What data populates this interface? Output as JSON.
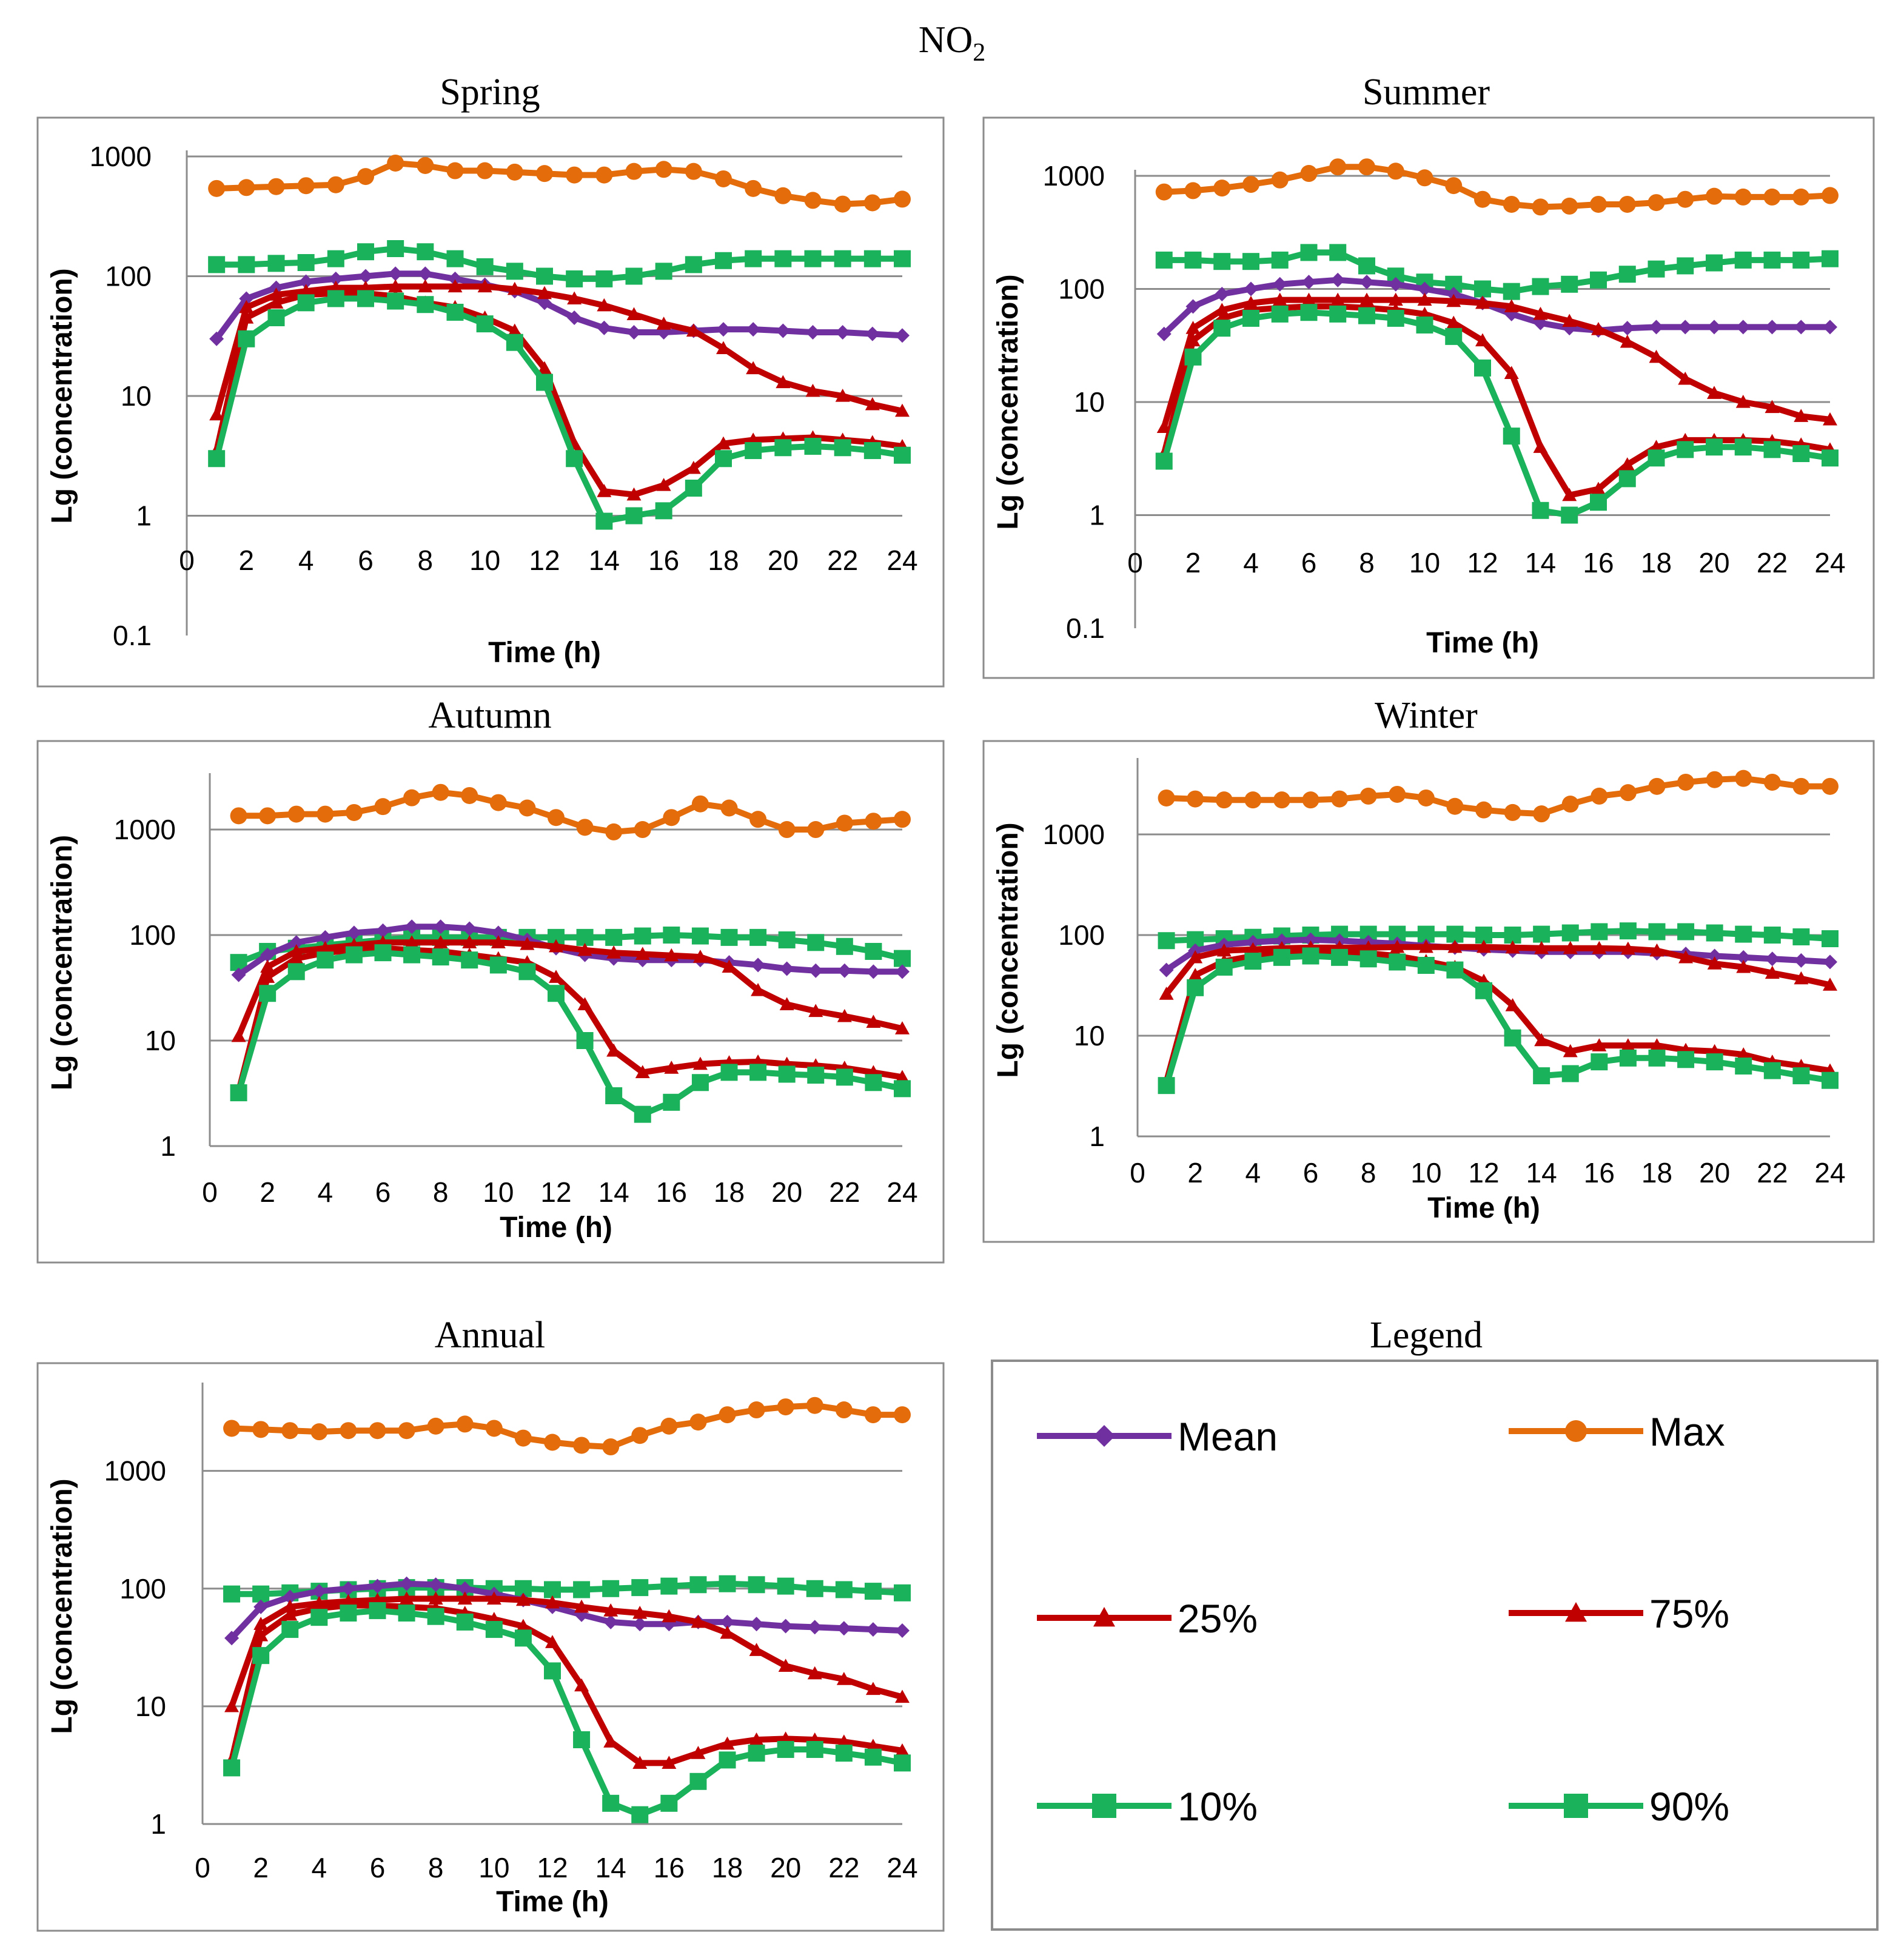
{
  "figure": {
    "title_main": "NO",
    "title_sub": "2",
    "panel_titles": [
      "Spring",
      "Summer",
      "Autumn",
      "Winter",
      "Annual"
    ],
    "legend_title": "Legend"
  },
  "legend": {
    "items": [
      {
        "label": "Mean",
        "color": "#7030a0",
        "marker": "diamond"
      },
      {
        "label": "Max",
        "color": "#e46c0a",
        "marker": "circle"
      },
      {
        "label": "25%",
        "color": "#c00000",
        "marker": "triangle"
      },
      {
        "label": "75%",
        "color": "#c00000",
        "marker": "triangle"
      },
      {
        "label": "10%",
        "color": "#1ab25a",
        "marker": "square"
      },
      {
        "label": "90%",
        "color": "#1ab25a",
        "marker": "square"
      }
    ]
  },
  "chart_data": [
    {
      "type": "line",
      "title": "Spring",
      "xlabel": "Time (h)",
      "ylabel": "Lg (concentration)",
      "yscale": "log",
      "ylim": [
        0.1,
        1000
      ],
      "yticks": [
        "0.1",
        "1",
        "10",
        "100",
        "1000"
      ],
      "xlim": [
        0,
        24
      ],
      "xticks": [
        "0",
        "2",
        "4",
        "6",
        "8",
        "10",
        "12",
        "14",
        "16",
        "18",
        "20",
        "22",
        "24"
      ],
      "x": [
        1,
        2,
        3,
        4,
        5,
        6,
        7,
        8,
        9,
        10,
        11,
        12,
        13,
        14,
        15,
        16,
        17,
        18,
        19,
        20,
        21,
        22,
        23,
        24
      ],
      "series": [
        {
          "name": "Max",
          "values": [
            540,
            550,
            560,
            570,
            580,
            680,
            880,
            840,
            760,
            760,
            740,
            720,
            700,
            700,
            750,
            780,
            750,
            650,
            540,
            470,
            430,
            400,
            410,
            440
          ]
        },
        {
          "name": "90%",
          "values": [
            125,
            125,
            128,
            130,
            140,
            160,
            170,
            160,
            140,
            120,
            110,
            100,
            95,
            95,
            100,
            110,
            125,
            135,
            140,
            140,
            140,
            140,
            140,
            140
          ]
        },
        {
          "name": "Mean",
          "values": [
            30,
            65,
            80,
            90,
            95,
            100,
            105,
            105,
            95,
            85,
            75,
            60,
            45,
            37,
            34,
            34,
            35,
            36,
            36,
            35,
            34,
            34,
            33,
            32
          ]
        },
        {
          "name": "75%",
          "values": [
            7,
            55,
            70,
            75,
            80,
            80,
            82,
            82,
            82,
            82,
            78,
            72,
            65,
            57,
            48,
            40,
            35,
            25,
            17,
            13,
            11,
            10,
            8.5,
            7.5
          ]
        },
        {
          "name": "25%",
          "values": [
            3.5,
            45,
            60,
            70,
            72,
            72,
            68,
            60,
            55,
            45,
            35,
            17,
            4,
            1.6,
            1.5,
            1.8,
            2.5,
            4,
            4.3,
            4.4,
            4.5,
            4.3,
            4.1,
            3.8
          ]
        },
        {
          "name": "10%",
          "values": [
            3,
            30,
            45,
            60,
            65,
            65,
            62,
            58,
            50,
            40,
            28,
            13,
            3,
            0.9,
            1,
            1.1,
            1.7,
            3,
            3.5,
            3.7,
            3.8,
            3.7,
            3.5,
            3.2
          ]
        }
      ]
    },
    {
      "type": "line",
      "title": "Summer",
      "xlabel": "Time (h)",
      "ylabel": "Lg (concentration)",
      "yscale": "log",
      "ylim": [
        0.1,
        1000
      ],
      "yticks": [
        "0.1",
        "1",
        "10",
        "100",
        "1000"
      ],
      "xlim": [
        0,
        24
      ],
      "xticks": [
        "0",
        "2",
        "4",
        "6",
        "8",
        "10",
        "12",
        "14",
        "16",
        "18",
        "20",
        "22",
        "24"
      ],
      "x": [
        1,
        2,
        3,
        4,
        5,
        6,
        7,
        8,
        9,
        10,
        11,
        12,
        13,
        14,
        15,
        16,
        17,
        18,
        19,
        20,
        21,
        22,
        23,
        24
      ],
      "series": [
        {
          "name": "Max",
          "values": [
            720,
            740,
            780,
            840,
            920,
            1050,
            1200,
            1200,
            1100,
            960,
            820,
            620,
            560,
            530,
            540,
            560,
            560,
            580,
            620,
            660,
            650,
            650,
            650,
            670
          ]
        },
        {
          "name": "90%",
          "values": [
            180,
            180,
            175,
            175,
            180,
            210,
            210,
            160,
            130,
            115,
            110,
            100,
            95,
            105,
            110,
            120,
            135,
            150,
            160,
            170,
            180,
            180,
            180,
            185
          ]
        },
        {
          "name": "Mean",
          "values": [
            40,
            70,
            90,
            100,
            110,
            115,
            120,
            115,
            110,
            100,
            90,
            75,
            60,
            50,
            45,
            43,
            45,
            46,
            46,
            46,
            46,
            46,
            46,
            46
          ]
        },
        {
          "name": "75%",
          "values": [
            6,
            45,
            65,
            75,
            80,
            80,
            80,
            80,
            80,
            80,
            78,
            75,
            70,
            60,
            52,
            44,
            34,
            25,
            16,
            12,
            10,
            9,
            7.5,
            7
          ]
        },
        {
          "name": "25%",
          "values": [
            3.5,
            35,
            55,
            65,
            68,
            70,
            70,
            68,
            65,
            60,
            50,
            35,
            18,
            4,
            1.5,
            1.7,
            2.8,
            4,
            4.6,
            4.6,
            4.6,
            4.5,
            4.2,
            3.8
          ]
        },
        {
          "name": "10%",
          "values": [
            3,
            25,
            45,
            55,
            60,
            62,
            60,
            58,
            55,
            48,
            38,
            20,
            5,
            1.1,
            1,
            1.3,
            2.1,
            3.2,
            3.8,
            4,
            4,
            3.8,
            3.5,
            3.2
          ]
        }
      ]
    },
    {
      "type": "line",
      "title": "Autumn",
      "xlabel": "Time (h)",
      "ylabel": "Lg (concentration)",
      "yscale": "log",
      "ylim": [
        1,
        3000
      ],
      "yticks": [
        "1",
        "10",
        "100",
        "1000"
      ],
      "xlim": [
        0,
        24
      ],
      "xticks": [
        "0",
        "2",
        "4",
        "6",
        "8",
        "10",
        "12",
        "14",
        "16",
        "18",
        "20",
        "22",
        "24"
      ],
      "x": [
        1,
        2,
        3,
        4,
        5,
        6,
        7,
        8,
        9,
        10,
        11,
        12,
        13,
        14,
        15,
        16,
        17,
        18,
        19,
        20,
        21,
        22,
        23,
        24
      ],
      "series": [
        {
          "name": "Max",
          "values": [
            1350,
            1350,
            1400,
            1400,
            1450,
            1650,
            2000,
            2250,
            2100,
            1800,
            1600,
            1300,
            1050,
            950,
            1000,
            1300,
            1750,
            1600,
            1250,
            1000,
            1000,
            1150,
            1200,
            1250
          ]
        },
        {
          "name": "90%",
          "values": [
            55,
            70,
            75,
            80,
            85,
            90,
            95,
            95,
            95,
            95,
            95,
            95,
            95,
            95,
            98,
            100,
            98,
            95,
            95,
            90,
            85,
            78,
            70,
            60
          ]
        },
        {
          "name": "Mean",
          "values": [
            42,
            65,
            85,
            95,
            105,
            110,
            120,
            120,
            115,
            105,
            90,
            75,
            65,
            60,
            58,
            58,
            58,
            55,
            52,
            48,
            46,
            46,
            45,
            45
          ]
        },
        {
          "name": "75%",
          "values": [
            11,
            50,
            70,
            75,
            80,
            85,
            85,
            85,
            85,
            85,
            82,
            78,
            72,
            68,
            66,
            64,
            62,
            50,
            30,
            22,
            19,
            17,
            15,
            13
          ]
        },
        {
          "name": "25%",
          "values": [
            3.3,
            40,
            60,
            68,
            72,
            75,
            72,
            70,
            65,
            60,
            55,
            40,
            22,
            8,
            5,
            5.5,
            6,
            6.2,
            6.3,
            6,
            5.8,
            5.5,
            5,
            4.5
          ]
        },
        {
          "name": "10%",
          "values": [
            3.2,
            28,
            45,
            58,
            65,
            68,
            65,
            62,
            58,
            52,
            45,
            28,
            10,
            3,
            2,
            2.6,
            4,
            5,
            5,
            4.8,
            4.7,
            4.5,
            4,
            3.5
          ]
        }
      ]
    },
    {
      "type": "line",
      "title": "Winter",
      "xlabel": "Time (h)",
      "ylabel": "Lg (concentration)",
      "yscale": "log",
      "ylim": [
        1,
        5000
      ],
      "yticks": [
        "1",
        "10",
        "100",
        "1000"
      ],
      "xlim": [
        0,
        24
      ],
      "xticks": [
        "0",
        "2",
        "4",
        "6",
        "8",
        "10",
        "12",
        "14",
        "16",
        "18",
        "20",
        "22",
        "24"
      ],
      "x": [
        1,
        2,
        3,
        4,
        5,
        6,
        7,
        8,
        9,
        10,
        11,
        12,
        13,
        14,
        15,
        16,
        17,
        18,
        19,
        20,
        21,
        22,
        23,
        24
      ],
      "series": [
        {
          "name": "Max",
          "values": [
            2300,
            2250,
            2200,
            2200,
            2200,
            2200,
            2250,
            2400,
            2500,
            2300,
            1900,
            1750,
            1650,
            1600,
            2000,
            2400,
            2600,
            3000,
            3300,
            3500,
            3600,
            3300,
            3000,
            3000
          ]
        },
        {
          "name": "90%",
          "values": [
            88,
            90,
            92,
            95,
            98,
            100,
            102,
            102,
            102,
            102,
            102,
            100,
            100,
            102,
            105,
            108,
            110,
            108,
            108,
            105,
            102,
            100,
            96,
            92
          ]
        },
        {
          "name": "Mean",
          "values": [
            45,
            70,
            80,
            85,
            88,
            90,
            88,
            85,
            82,
            78,
            75,
            72,
            70,
            68,
            68,
            68,
            68,
            66,
            65,
            62,
            60,
            58,
            56,
            54
          ]
        },
        {
          "name": "75%",
          "values": [
            26,
            60,
            70,
            72,
            74,
            75,
            75,
            75,
            76,
            76,
            76,
            76,
            75,
            74,
            74,
            74,
            73,
            70,
            60,
            52,
            48,
            42,
            37,
            32
          ]
        },
        {
          "name": "25%",
          "values": [
            3.5,
            40,
            55,
            62,
            66,
            68,
            68,
            66,
            62,
            55,
            48,
            35,
            20,
            9,
            7,
            8,
            8,
            8,
            7.2,
            7,
            6.5,
            5.5,
            5,
            4.5
          ]
        },
        {
          "name": "10%",
          "values": [
            3.2,
            30,
            48,
            55,
            60,
            62,
            60,
            58,
            54,
            50,
            45,
            28,
            9.5,
            4,
            4.2,
            5.5,
            6,
            6,
            5.8,
            5.5,
            5,
            4.5,
            4,
            3.6
          ]
        }
      ]
    },
    {
      "type": "line",
      "title": "Annual",
      "xlabel": "Time (h)",
      "ylabel": "Lg (concentration)",
      "yscale": "log",
      "ylim": [
        1,
        5000
      ],
      "yticks": [
        "1",
        "10",
        "100",
        "1000"
      ],
      "xlim": [
        0,
        24
      ],
      "xticks": [
        "0",
        "2",
        "4",
        "6",
        "8",
        "10",
        "12",
        "14",
        "16",
        "18",
        "20",
        "22",
        "24"
      ],
      "x": [
        1,
        2,
        3,
        4,
        5,
        6,
        7,
        8,
        9,
        10,
        11,
        12,
        13,
        14,
        15,
        16,
        17,
        18,
        19,
        20,
        21,
        22,
        23,
        24
      ],
      "series": [
        {
          "name": "Max",
          "values": [
            2300,
            2250,
            2200,
            2150,
            2200,
            2200,
            2200,
            2400,
            2500,
            2300,
            1900,
            1750,
            1650,
            1600,
            2000,
            2400,
            2600,
            3000,
            3300,
            3500,
            3600,
            3300,
            3000,
            3000
          ]
        },
        {
          "name": "90%",
          "values": [
            90,
            90,
            92,
            95,
            98,
            100,
            102,
            102,
            102,
            100,
            100,
            98,
            98,
            100,
            102,
            105,
            108,
            110,
            108,
            105,
            100,
            98,
            95,
            92
          ]
        },
        {
          "name": "Mean",
          "values": [
            38,
            70,
            85,
            95,
            100,
            105,
            110,
            108,
            100,
            90,
            80,
            70,
            60,
            52,
            50,
            50,
            52,
            52,
            50,
            48,
            47,
            46,
            45,
            44
          ]
        },
        {
          "name": "75%",
          "values": [
            10,
            50,
            70,
            75,
            78,
            80,
            82,
            82,
            82,
            82,
            80,
            76,
            70,
            65,
            62,
            58,
            52,
            42,
            30,
            22,
            19,
            17,
            14,
            12
          ]
        },
        {
          "name": "25%",
          "values": [
            3.5,
            40,
            60,
            68,
            72,
            72,
            70,
            68,
            62,
            55,
            48,
            35,
            15,
            5,
            3.3,
            3.3,
            4,
            4.8,
            5.2,
            5.3,
            5.2,
            5,
            4.6,
            4.2
          ]
        },
        {
          "name": "10%",
          "values": [
            3,
            27,
            45,
            57,
            62,
            65,
            62,
            58,
            52,
            45,
            38,
            20,
            5.2,
            1.5,
            1.2,
            1.5,
            2.3,
            3.5,
            4,
            4.3,
            4.3,
            4,
            3.7,
            3.3
          ]
        }
      ]
    }
  ]
}
